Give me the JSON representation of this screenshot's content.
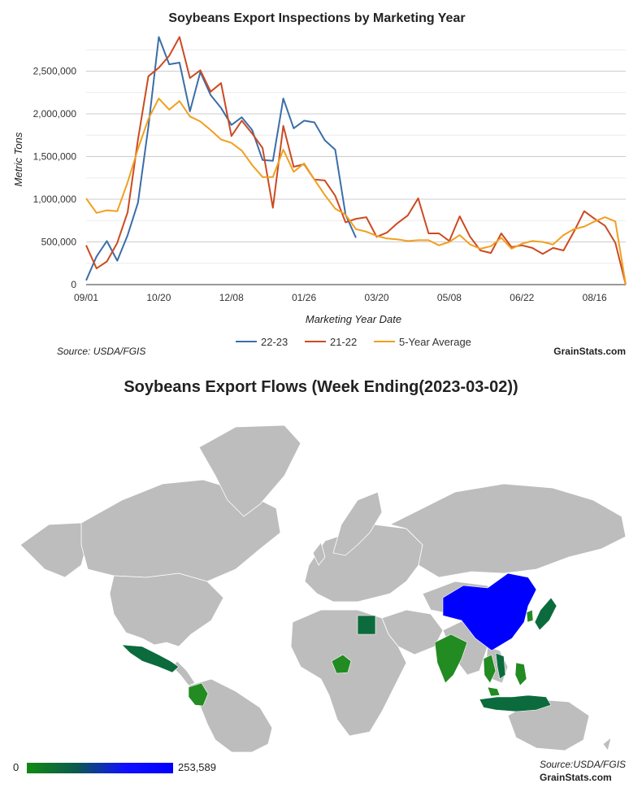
{
  "chart_data": [
    {
      "type": "line",
      "title": "Soybeans Export Inspections by Marketing Year",
      "xlabel": "Marketing Year Date",
      "ylabel": "Metric Tons",
      "ylim": [
        0,
        3000000
      ],
      "yticks": [
        0,
        500000,
        1000000,
        1500000,
        2000000,
        2500000
      ],
      "ytick_labels": [
        "0",
        "500,000",
        "1,000,000",
        "1,500,000",
        "2,000,000",
        "2,500,000"
      ],
      "xtick_labels": [
        "09/01",
        "10/20",
        "12/08",
        "01/26",
        "03/20",
        "05/08",
        "06/22",
        "08/16"
      ],
      "xtick_weeks": [
        0,
        7,
        14,
        21,
        28,
        35,
        42,
        49
      ],
      "weeks_total": 52,
      "grid": true,
      "legend_position": "bottom",
      "source": "Source: USDA/FGIS",
      "brand": "GrainStats.com",
      "series": [
        {
          "name": "22-23",
          "color": "#3b6ea8",
          "values": [
            50000,
            330000,
            510000,
            280000,
            580000,
            960000,
            1850000,
            2900000,
            2580000,
            2600000,
            2030000,
            2490000,
            2220000,
            2070000,
            1870000,
            1960000,
            1810000,
            1460000,
            1450000,
            2180000,
            1830000,
            1920000,
            1900000,
            1690000,
            1580000,
            820000,
            550000
          ]
        },
        {
          "name": "21-22",
          "color": "#cc4a22",
          "values": [
            460000,
            190000,
            270000,
            490000,
            850000,
            1700000,
            2440000,
            2540000,
            2680000,
            2900000,
            2420000,
            2510000,
            2260000,
            2360000,
            1740000,
            1920000,
            1770000,
            1600000,
            900000,
            1860000,
            1380000,
            1410000,
            1230000,
            1220000,
            1040000,
            730000,
            770000,
            790000,
            560000,
            610000,
            720000,
            810000,
            1010000,
            600000,
            600000,
            510000,
            800000,
            560000,
            400000,
            370000,
            600000,
            440000,
            460000,
            430000,
            360000,
            430000,
            400000,
            620000,
            860000,
            770000,
            690000,
            490000,
            0
          ]
        },
        {
          "name": "5-Year Average",
          "color": "#f0a020",
          "values": [
            1010000,
            840000,
            870000,
            860000,
            1200000,
            1590000,
            1940000,
            2180000,
            2050000,
            2150000,
            1970000,
            1910000,
            1810000,
            1700000,
            1660000,
            1570000,
            1400000,
            1260000,
            1260000,
            1580000,
            1320000,
            1420000,
            1230000,
            1050000,
            890000,
            820000,
            650000,
            620000,
            570000,
            540000,
            530000,
            510000,
            520000,
            520000,
            460000,
            500000,
            580000,
            470000,
            420000,
            450000,
            550000,
            420000,
            480000,
            510000,
            500000,
            470000,
            580000,
            650000,
            680000,
            740000,
            790000,
            740000,
            0
          ]
        }
      ]
    },
    {
      "type": "choropleth",
      "title": "Soybeans Export Flows (Week Ending(2023-03-02))",
      "scale_min_label": "0",
      "scale_max_label": "253,589",
      "scale_min": 0,
      "scale_max": 253589,
      "scale_colors": [
        "#118a11",
        "#0b5a4d",
        "#0000ff"
      ],
      "default_color": "#bdbdbd",
      "source": "Source:USDA/FGIS",
      "brand": "GrainStats.com",
      "highlighted_regions": [
        {
          "name": "China",
          "color": "#0000ff"
        },
        {
          "name": "Mexico",
          "color": "#0b6b3c"
        },
        {
          "name": "Colombia",
          "color": "#228b22"
        },
        {
          "name": "Egypt",
          "color": "#0b6b3c"
        },
        {
          "name": "Nigeria",
          "color": "#228b22"
        },
        {
          "name": "India",
          "color": "#228b22"
        },
        {
          "name": "Japan",
          "color": "#0b6b3c"
        },
        {
          "name": "South Korea",
          "color": "#228b22"
        },
        {
          "name": "Thailand",
          "color": "#228b22"
        },
        {
          "name": "Vietnam",
          "color": "#0b6b3c"
        },
        {
          "name": "Philippines",
          "color": "#228b22"
        },
        {
          "name": "Indonesia",
          "color": "#0b6b3c"
        },
        {
          "name": "Malaysia",
          "color": "#228b22"
        }
      ]
    }
  ]
}
